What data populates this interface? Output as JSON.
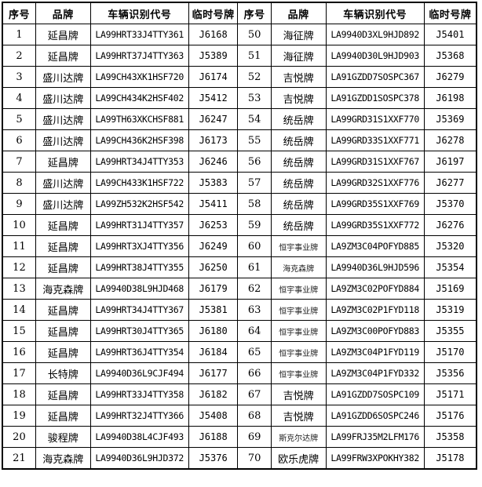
{
  "table": {
    "colors": {
      "border": "#000000",
      "background": "#ffffff",
      "text": "#000000"
    },
    "headers": [
      "序号",
      "品牌",
      "车辆识别代号",
      "临时号牌",
      "序号",
      "品牌",
      "车辆识别代号",
      "临时号牌"
    ],
    "rows": [
      {
        "cells": [
          "1",
          "延昌牌",
          "LA99HRT33J4TTY361",
          "J6168",
          "50",
          "海征牌",
          "LA9940D3XL9HJD892",
          "J5401"
        ],
        "small_cells": []
      },
      {
        "cells": [
          "2",
          "延昌牌",
          "LA99HRT37J4TTY363",
          "J5389",
          "51",
          "海征牌",
          "LA9940D30L9HJD903",
          "J5368"
        ],
        "small_cells": []
      },
      {
        "cells": [
          "3",
          "盛川达牌",
          "LA99CH43XK1HSF720",
          "J6174",
          "52",
          "吉悦牌",
          "LA91GZDD7SOSPC367",
          "J6279"
        ],
        "small_cells": []
      },
      {
        "cells": [
          "4",
          "盛川达牌",
          "LA99CH434K2HSF402",
          "J5412",
          "53",
          "吉悦牌",
          "LA91GZDD1SOSPC378",
          "J6198"
        ],
        "small_cells": []
      },
      {
        "cells": [
          "5",
          "盛川达牌",
          "LA99TH63XKCHSF881",
          "J6247",
          "54",
          "统岳牌",
          "LA99GRD31S1XXF770",
          "J5369"
        ],
        "small_cells": []
      },
      {
        "cells": [
          "6",
          "盛川达牌",
          "LA99CH436K2HSF398",
          "J6173",
          "55",
          "统岳牌",
          "LA99GRD33S1XXF771",
          "J6278"
        ],
        "small_cells": []
      },
      {
        "cells": [
          "7",
          "延昌牌",
          "LA99HRT34J4TTY353",
          "J6246",
          "56",
          "统岳牌",
          "LA99GRD31S1XXF767",
          "J6197"
        ],
        "small_cells": []
      },
      {
        "cells": [
          "8",
          "盛川达牌",
          "LA99CH433K1HSF722",
          "J5383",
          "57",
          "统岳牌",
          "LA99GRD32S1XXF776",
          "J6277"
        ],
        "small_cells": []
      },
      {
        "cells": [
          "9",
          "盛川达牌",
          "LA99ZH532K2HSF542",
          "J5411",
          "58",
          "统岳牌",
          "LA99GRD35S1XXF769",
          "J5370"
        ],
        "small_cells": []
      },
      {
        "cells": [
          "10",
          "延昌牌",
          "LA99HRT31J4TTY357",
          "J6253",
          "59",
          "统岳牌",
          "LA99GRD35S1XXF772",
          "J6276"
        ],
        "small_cells": []
      },
      {
        "cells": [
          "11",
          "延昌牌",
          "LA99HRT3XJ4TTY356",
          "J6249",
          "60",
          "恒宇事业牌",
          "LA9ZM3C04POFYD885",
          "J5320"
        ],
        "small_cells": [
          5
        ]
      },
      {
        "cells": [
          "12",
          "延昌牌",
          "LA99HRT38J4TTY355",
          "J6250",
          "61",
          "海克森牌",
          "LA9940D36L9HJD596",
          "J5354"
        ],
        "small_cells": [
          5
        ]
      },
      {
        "cells": [
          "13",
          "海克森牌",
          "LA9940D38L9HJD468",
          "J6179",
          "62",
          "恒宇事业牌",
          "LA9ZM3C02POFYD884",
          "J5169"
        ],
        "small_cells": [
          5
        ]
      },
      {
        "cells": [
          "14",
          "延昌牌",
          "LA99HRT34J4TTY367",
          "J5381",
          "63",
          "恒宇事业牌",
          "LA9ZM3C02P1FYD118",
          "J5319"
        ],
        "small_cells": [
          5
        ]
      },
      {
        "cells": [
          "15",
          "延昌牌",
          "LA99HRT30J4TTY365",
          "J6180",
          "64",
          "恒宇事业牌",
          "LA9ZM3C00POFYD883",
          "J5355"
        ],
        "small_cells": [
          5
        ]
      },
      {
        "cells": [
          "16",
          "延昌牌",
          "LA99HRT36J4TTY354",
          "J6184",
          "65",
          "恒宇事业牌",
          "LA9ZM3C04P1FYD119",
          "J5170"
        ],
        "small_cells": [
          5
        ]
      },
      {
        "cells": [
          "17",
          "长特牌",
          "LA9940D36L9CJF494",
          "J6177",
          "66",
          "恒宇事业牌",
          "LA9ZM3C04P1FYD332",
          "J5356"
        ],
        "small_cells": [
          5
        ]
      },
      {
        "cells": [
          "18",
          "延昌牌",
          "LA99HRT33J4TTY358",
          "J6182",
          "67",
          "吉悦牌",
          "LA91GZDD7SOSPC109",
          "J5171"
        ],
        "small_cells": []
      },
      {
        "cells": [
          "19",
          "延昌牌",
          "LA99HRT32J4TTY366",
          "J5408",
          "68",
          "吉悦牌",
          "LA91GZDD6SOSPC246",
          "J5176"
        ],
        "small_cells": []
      },
      {
        "cells": [
          "20",
          "骏程牌",
          "LA9940D38L4CJF493",
          "J6188",
          "69",
          "斯克尔达牌",
          "LA99FRJ35M2LFM176",
          "J5358"
        ],
        "small_cells": [
          5
        ]
      },
      {
        "cells": [
          "21",
          "海克森牌",
          "LA9940D36L9HJD372",
          "J5376",
          "70",
          "欧乐虎牌",
          "LA99FRW3XPOKHY382",
          "J5178"
        ],
        "small_cells": []
      }
    ]
  }
}
